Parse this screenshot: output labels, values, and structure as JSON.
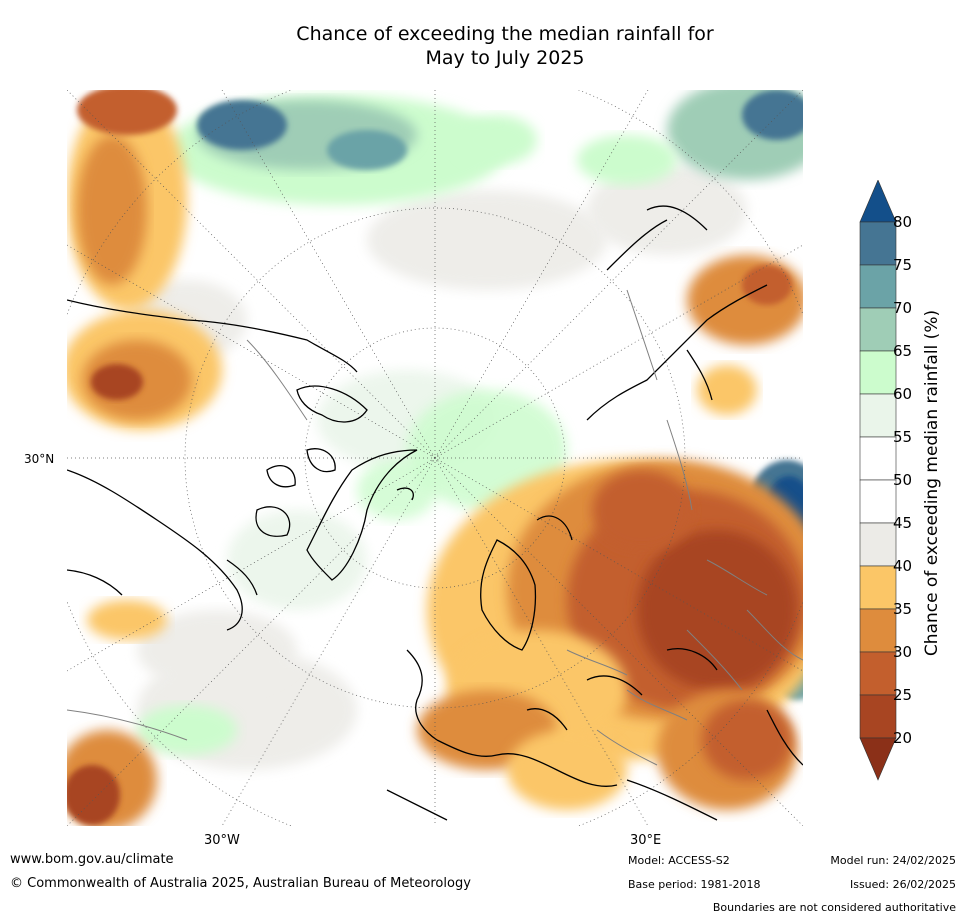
{
  "title": {
    "line1": "Chance of exceeding the median rainfall for",
    "line2": "May to July 2025"
  },
  "map": {
    "projection": "north-polar-stereographic",
    "lat_labels": [
      "30°N"
    ],
    "lon_labels": [
      "30°W",
      "30°E"
    ]
  },
  "legend": {
    "title": "Chance of exceeding median rainfall (%)",
    "ticks": [
      "80",
      "75",
      "70",
      "65",
      "60",
      "55",
      "50",
      "45",
      "40",
      "35",
      "30",
      "25",
      "20"
    ],
    "bins": [
      {
        "range": ">80",
        "color": "#134f8a"
      },
      {
        "range": "75-80",
        "color": "#457593"
      },
      {
        "range": "70-75",
        "color": "#6ba3a7"
      },
      {
        "range": "65-70",
        "color": "#9fcdb6"
      },
      {
        "range": "60-65",
        "color": "#ccfccd"
      },
      {
        "range": "55-60",
        "color": "#eaf5ea"
      },
      {
        "range": "50-55",
        "color": "#ffffff"
      },
      {
        "range": "45-50",
        "color": "#ffffff"
      },
      {
        "range": "40-45",
        "color": "#ecebe7"
      },
      {
        "range": "35-40",
        "color": "#fbc667"
      },
      {
        "range": "30-35",
        "color": "#de8c3d"
      },
      {
        "range": "25-30",
        "color": "#c35f2d"
      },
      {
        "range": "20-25",
        "color": "#a84522"
      },
      {
        "range": "<20",
        "color": "#8b3018"
      }
    ]
  },
  "footer": {
    "url": "www.bom.gov.au/climate",
    "copyright": "© Commonwealth of Australia 2025, Australian Bureau of Meteorology",
    "model": "Model: ACCESS-S2",
    "base_period": "Base period: 1981-2018",
    "model_run": "Model run: 24/02/2025",
    "issued": "Issued: 26/02/2025",
    "disclaimer": "Boundaries are not considered authoritative"
  }
}
